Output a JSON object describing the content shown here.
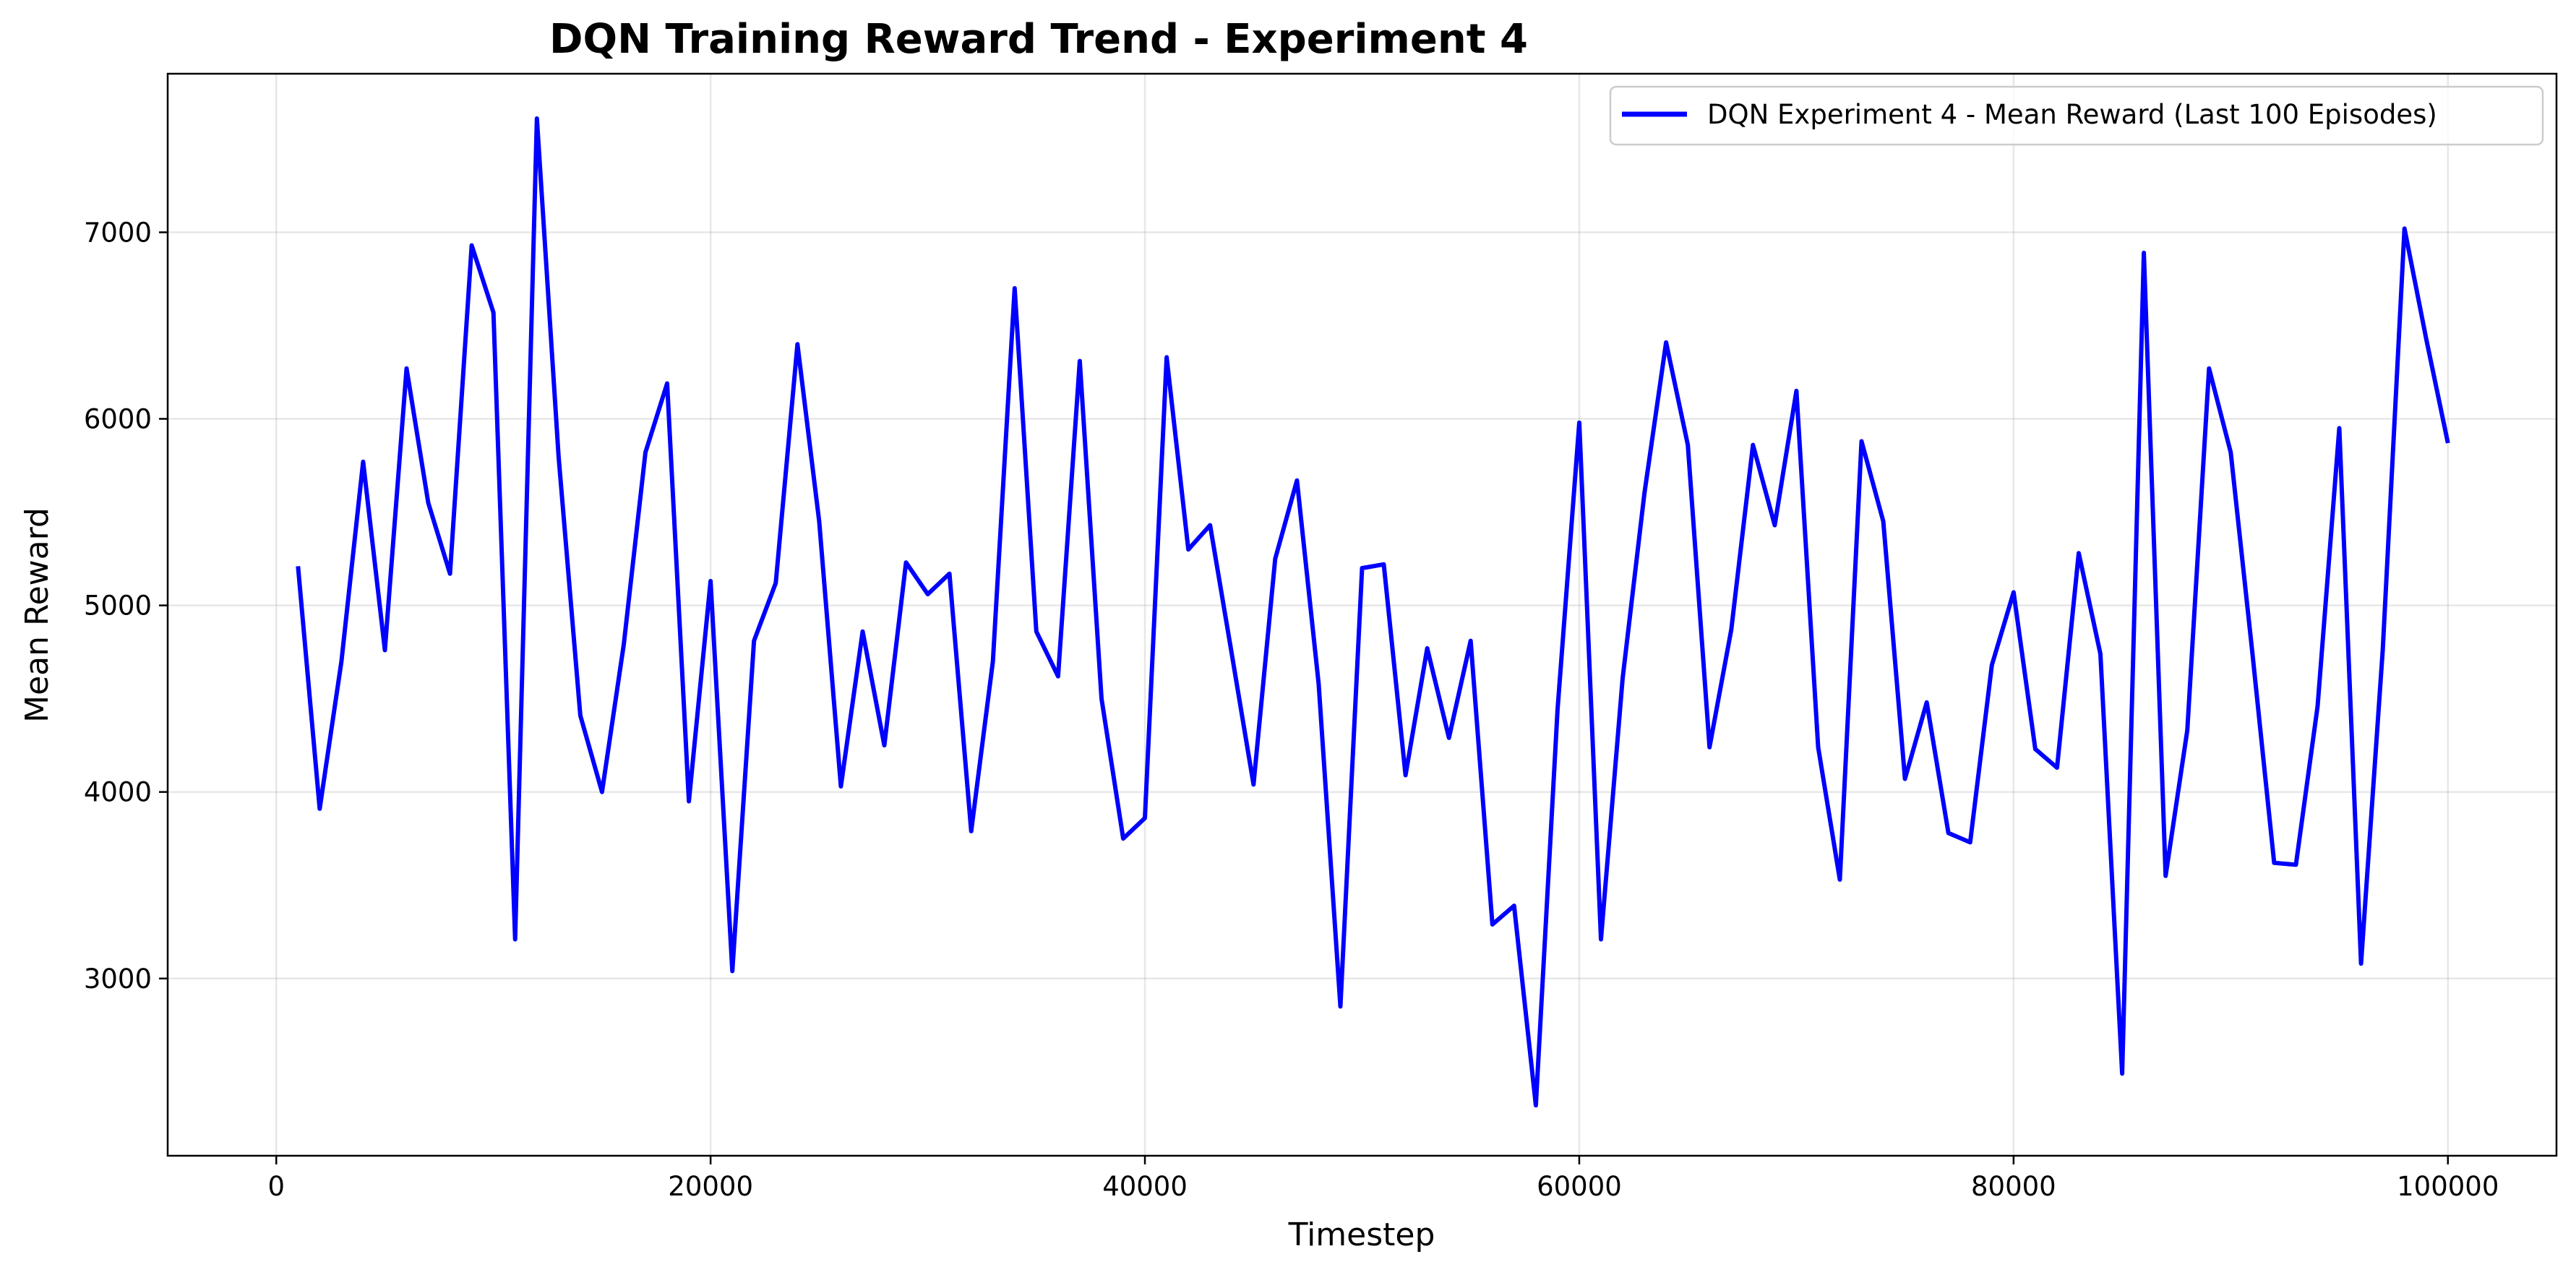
{
  "chart_data": {
    "type": "line",
    "title": "DQN Training Reward Trend - Experiment 4",
    "xlabel": "Timestep",
    "ylabel": "Mean Reward",
    "xlim": [
      -5000,
      105000
    ],
    "ylim": [
      2050,
      7850
    ],
    "xticks": [
      0,
      20000,
      40000,
      60000,
      80000,
      100000
    ],
    "yticks": [
      3000,
      4000,
      5000,
      6000,
      7000
    ],
    "grid": true,
    "legend_position": "top-right",
    "series": [
      {
        "name": "DQN Experiment 4 - Mean Reward (Last 100 Episodes)",
        "color": "#0000ff",
        "x": [
          1000,
          2000,
          3000,
          4000,
          5000,
          6000,
          7000,
          8000,
          9000,
          10000,
          11000,
          12000,
          13000,
          14000,
          15000,
          16000,
          17000,
          18000,
          19000,
          20000,
          21000,
          22000,
          23000,
          24000,
          25000,
          26000,
          27000,
          28000,
          29000,
          30000,
          31000,
          32000,
          33000,
          34000,
          35000,
          36000,
          37000,
          38000,
          39000,
          40000,
          41000,
          42000,
          43000,
          44000,
          45000,
          46000,
          47000,
          48000,
          49000,
          50000,
          51000,
          52000,
          53000,
          54000,
          55000,
          56000,
          57000,
          58000,
          59000,
          60000,
          61000,
          62000,
          63000,
          64000,
          65000,
          66000,
          67000,
          68000,
          69000,
          70000,
          71000,
          72000,
          73000,
          74000,
          75000,
          76000,
          77000,
          78000,
          79000,
          80000,
          81000,
          82000,
          83000,
          84000,
          85000,
          86000,
          87000,
          88000,
          89000,
          90000,
          91000,
          92000,
          93000,
          94000,
          95000,
          96000,
          97000,
          98000,
          99000,
          100000
        ],
        "y": [
          5210,
          3910,
          4700,
          5770,
          4760,
          6270,
          5550,
          5170,
          6930,
          6570,
          3210,
          7610,
          5800,
          4410,
          4000,
          4790,
          5820,
          6190,
          3950,
          5130,
          3040,
          4810,
          5120,
          6400,
          5450,
          4030,
          4860,
          4250,
          5230,
          5060,
          5170,
          3790,
          4700,
          6700,
          4860,
          4620,
          6310,
          4500,
          3750,
          3860,
          6330,
          5300,
          5430,
          4740,
          4040,
          5250,
          5670,
          4580,
          2850,
          5200,
          5220,
          4090,
          4770,
          4290,
          4810,
          3290,
          3390,
          2320,
          4440,
          5980,
          3210,
          4610,
          5600,
          6410,
          5860,
          4240,
          4870,
          5860,
          5430,
          6150,
          4240,
          3530,
          5880,
          5450,
          4070,
          4480,
          3780,
          3730,
          4680,
          5070,
          4230,
          4130,
          5280,
          4740,
          2490,
          6890,
          3550,
          4330,
          6270,
          5820,
          4740,
          3620,
          3610,
          4460,
          5950,
          3080,
          4760,
          7020,
          6430,
          5870
        ]
      }
    ]
  }
}
